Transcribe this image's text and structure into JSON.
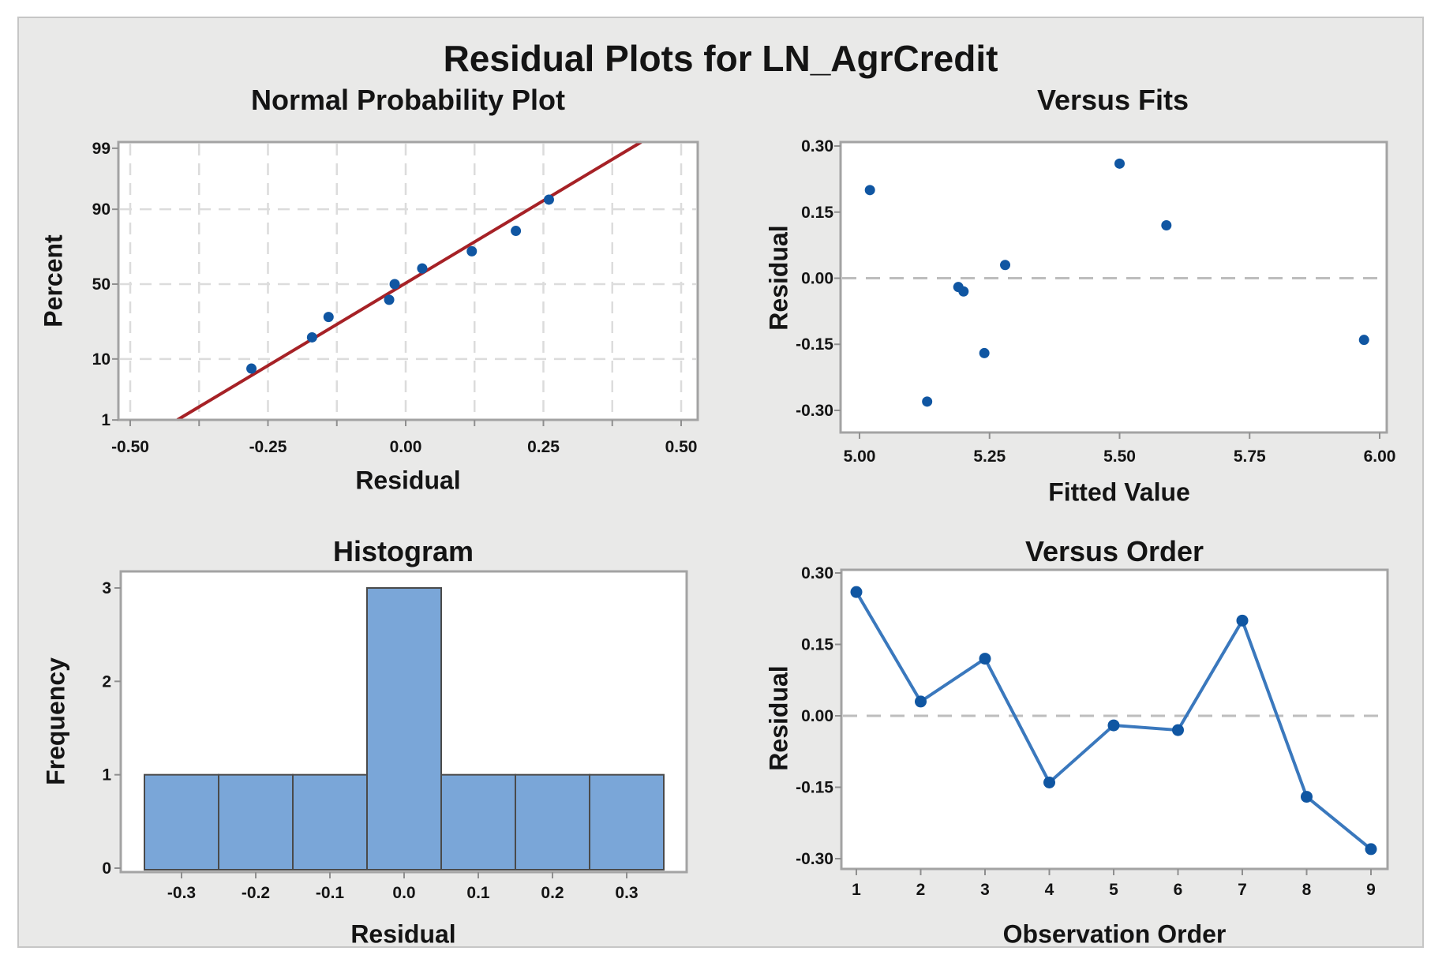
{
  "figure": {
    "title": "Residual Plots for LN_AgrCredit",
    "background_color": "#e9e9e8"
  },
  "colors": {
    "plot_bg": "#ffffff",
    "frame": "#a3a3a3",
    "grid": "#dcdcdc",
    "zero_line": "#bdbdbd",
    "tick": "#8f8f8f",
    "text": "#141414",
    "marker_blue": "#1056a2",
    "connector_blue": "#3a78bd",
    "hist_fill": "#7aa6d8",
    "hist_edge": "#4a4a4a",
    "fit_line_red": "#a62126"
  },
  "chart_data": [
    {
      "id": "normal-probability-plot",
      "type": "scatter",
      "title": "Normal Probability Plot",
      "xlabel": "Residual",
      "ylabel": "Percent",
      "y_scale": "probit-percent",
      "xlim": [
        -0.52,
        0.53
      ],
      "x_ticks": [
        -0.5,
        -0.25,
        0,
        0.25,
        0.5
      ],
      "x_tick_labels": [
        "-0.50",
        "-0.25",
        "0.00",
        "0.25",
        "0.50"
      ],
      "x_minor_grid_step": 0.125,
      "y_ticks": [
        1,
        10,
        50,
        90,
        99
      ],
      "y_tick_labels": [
        "1",
        "10",
        "50",
        "90",
        "99"
      ],
      "y_gridlines_percent": [
        10,
        50,
        90
      ],
      "grid": true,
      "points": [
        {
          "residual": -0.28,
          "percent": 7.4
        },
        {
          "residual": -0.17,
          "percent": 18.1
        },
        {
          "residual": -0.14,
          "percent": 28.7
        },
        {
          "residual": -0.03,
          "percent": 39.4
        },
        {
          "residual": -0.02,
          "percent": 50.0
        },
        {
          "residual": 0.03,
          "percent": 60.6
        },
        {
          "residual": 0.12,
          "percent": 71.3
        },
        {
          "residual": 0.2,
          "percent": 81.9
        },
        {
          "residual": 0.26,
          "percent": 92.6
        }
      ],
      "fit_line": {
        "mean": -0.003,
        "stdev": 0.177
      }
    },
    {
      "id": "versus-fits",
      "type": "scatter",
      "title": "Versus Fits",
      "xlabel": "Fitted Value",
      "ylabel": "Residual",
      "xlim": [
        4.96,
        6.01
      ],
      "ylim": [
        -0.35,
        0.31
      ],
      "x_ticks": [
        5.0,
        5.25,
        5.5,
        5.75,
        6.0
      ],
      "x_tick_labels": [
        "5.00",
        "5.25",
        "5.50",
        "5.75",
        "6.00"
      ],
      "y_ticks": [
        0.3,
        0.15,
        0.0,
        -0.15,
        -0.3
      ],
      "y_tick_labels": [
        "0.30",
        "0.15",
        "0.00",
        "-0.15",
        "-0.30"
      ],
      "zero_line": true,
      "grid": false,
      "points": [
        {
          "fitted": 5.02,
          "residual": 0.2
        },
        {
          "fitted": 5.13,
          "residual": -0.28
        },
        {
          "fitted": 5.19,
          "residual": -0.02
        },
        {
          "fitted": 5.2,
          "residual": -0.03
        },
        {
          "fitted": 5.24,
          "residual": -0.17
        },
        {
          "fitted": 5.28,
          "residual": 0.03
        },
        {
          "fitted": 5.5,
          "residual": 0.26
        },
        {
          "fitted": 5.59,
          "residual": 0.12
        },
        {
          "fitted": 5.97,
          "residual": -0.14
        }
      ]
    },
    {
      "id": "histogram",
      "type": "bar",
      "title": "Histogram",
      "xlabel": "Residual",
      "ylabel": "Frequency",
      "bin_width": 0.1,
      "bin_centers": [
        -0.3,
        -0.2,
        -0.1,
        0.0,
        0.1,
        0.2,
        0.3
      ],
      "x_tick_labels": [
        "-0.3",
        "-0.2",
        "-0.1",
        "0.0",
        "0.1",
        "0.2",
        "0.3"
      ],
      "frequencies": [
        1,
        1,
        1,
        3,
        1,
        1,
        1
      ],
      "y_ticks": [
        0,
        1,
        2,
        3
      ],
      "y_tick_labels": [
        "0",
        "1",
        "2",
        "3"
      ],
      "ylim": [
        0,
        3.2
      ],
      "grid": false
    },
    {
      "id": "versus-order",
      "type": "line",
      "title": "Versus Order",
      "xlabel": "Observation Order",
      "ylabel": "Residual",
      "x_ticks": [
        1,
        2,
        3,
        4,
        5,
        6,
        7,
        8,
        9
      ],
      "x_tick_labels": [
        "1",
        "2",
        "3",
        "4",
        "5",
        "6",
        "7",
        "8",
        "9"
      ],
      "y_ticks": [
        0.3,
        0.15,
        0.0,
        -0.15,
        -0.3
      ],
      "y_tick_labels": [
        "0.30",
        "0.15",
        "0.00",
        "-0.15",
        "-0.30"
      ],
      "ylim": [
        -0.33,
        0.31
      ],
      "zero_line": true,
      "grid": false,
      "residuals": [
        0.26,
        0.03,
        0.12,
        -0.14,
        -0.02,
        -0.03,
        0.2,
        -0.17,
        -0.28
      ]
    }
  ]
}
